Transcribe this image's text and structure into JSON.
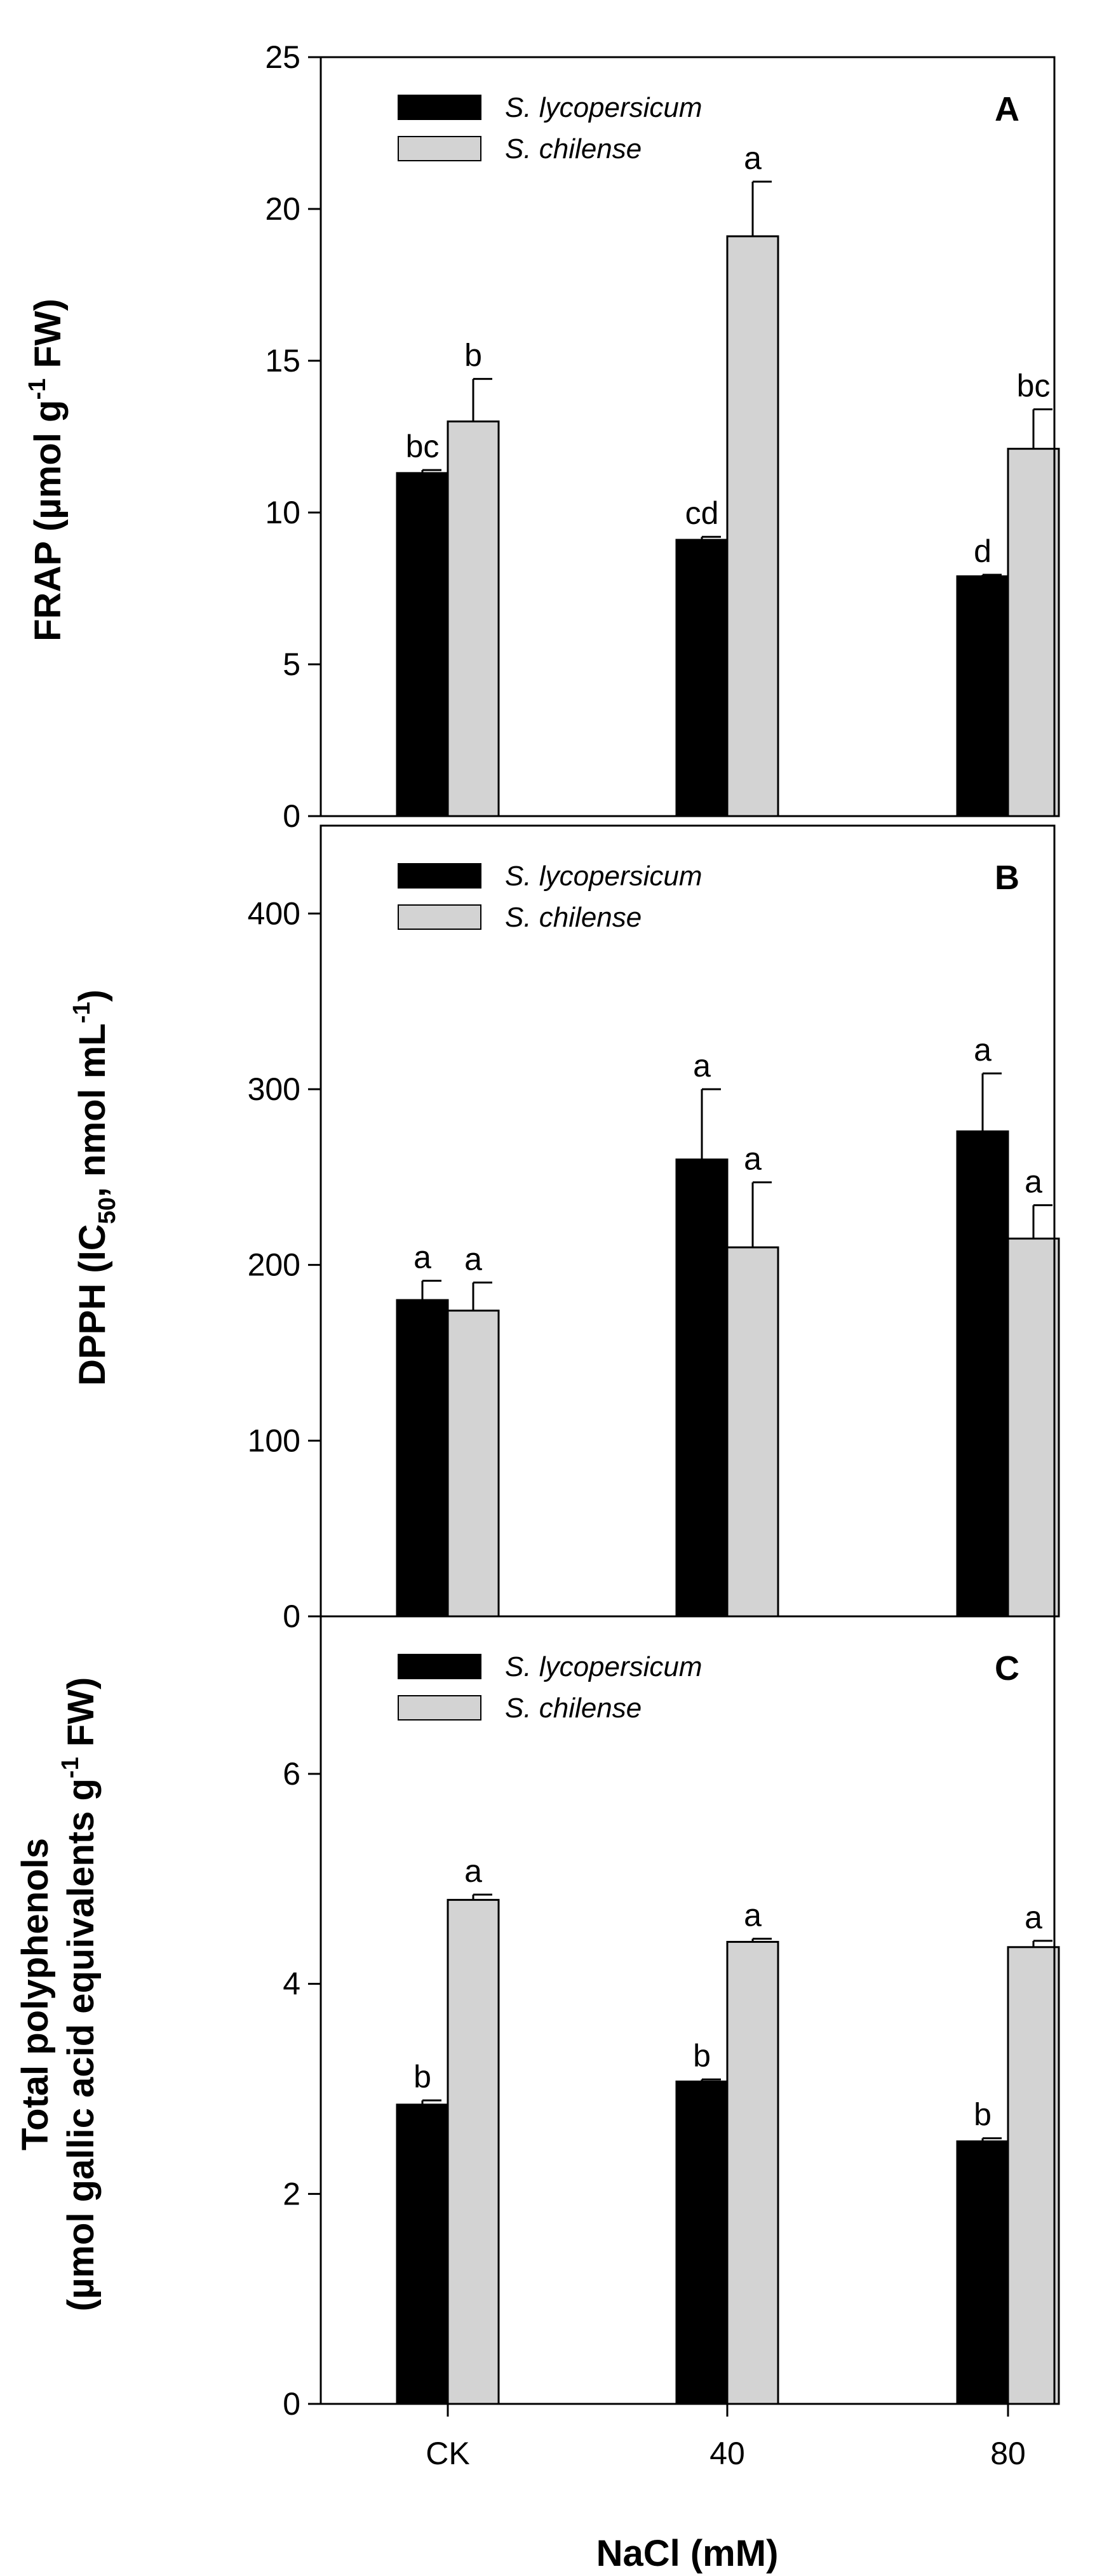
{
  "chart_data": [
    {
      "type": "bar",
      "panel_label": "A",
      "ylabel_main": "FRAP (µmol g",
      "ylabel_sup": "-1",
      "ylabel_tail": " FW)",
      "ylim": [
        0,
        25
      ],
      "yticks": [
        "0",
        "5",
        "10",
        "15",
        "20",
        "25"
      ],
      "categories": [
        "CK",
        "40",
        "80"
      ],
      "series": [
        {
          "name": "S. lycopersicum",
          "color": "#000000",
          "values": [
            11.3,
            9.1,
            7.9
          ],
          "errors": [
            0.1,
            0.1,
            0.05
          ],
          "labels": [
            "bc",
            "cd",
            "d"
          ]
        },
        {
          "name": "S. chilense",
          "color": "#d3d3d3",
          "values": [
            13.0,
            19.1,
            12.1
          ],
          "errors": [
            1.4,
            1.8,
            1.3
          ],
          "labels": [
            "b",
            "a",
            "bc"
          ]
        }
      ]
    },
    {
      "type": "bar",
      "panel_label": "B",
      "ylabel_pre": "DPPH (IC",
      "ylabel_sub": "50",
      "ylabel_mid": ", nmol mL",
      "ylabel_sup": "-1",
      "ylabel_tail": ")",
      "ylim": [
        0,
        450
      ],
      "yticks": [
        "0",
        "100",
        "200",
        "300",
        "400"
      ],
      "categories": [
        "CK",
        "40",
        "80"
      ],
      "series": [
        {
          "name": "S. lycopersicum",
          "color": "#000000",
          "values": [
            180,
            260,
            276
          ],
          "errors": [
            11,
            40,
            33
          ],
          "labels": [
            "a",
            "a",
            "a"
          ]
        },
        {
          "name": "S. chilense",
          "color": "#d3d3d3",
          "values": [
            174,
            210,
            215
          ],
          "errors": [
            16,
            37,
            19
          ],
          "labels": [
            "a",
            "a",
            "a"
          ]
        }
      ]
    },
    {
      "type": "bar",
      "panel_label": "C",
      "ylabel_line1": "Total polyphenols",
      "ylabel_line2_main": "(µmol gallic acid equivalents g",
      "ylabel_line2_sup": "-1",
      "ylabel_line2_tail": " FW)",
      "ylim": [
        0,
        7.5
      ],
      "yticks": [
        "0",
        "2",
        "4",
        "6"
      ],
      "xticks": [
        "CK",
        "40",
        "80"
      ],
      "xlabel": "NaCl (mM)",
      "categories": [
        "CK",
        "40",
        "80"
      ],
      "series": [
        {
          "name": "S. lycopersicum",
          "color": "#000000",
          "values": [
            2.85,
            3.07,
            2.5
          ],
          "errors": [
            0.04,
            0.02,
            0.03
          ],
          "labels": [
            "b",
            "b",
            "b"
          ]
        },
        {
          "name": "S. chilense",
          "color": "#d3d3d3",
          "values": [
            4.8,
            4.4,
            4.35
          ],
          "errors": [
            0.05,
            0.03,
            0.06
          ],
          "labels": [
            "a",
            "a",
            "a"
          ]
        }
      ]
    }
  ]
}
